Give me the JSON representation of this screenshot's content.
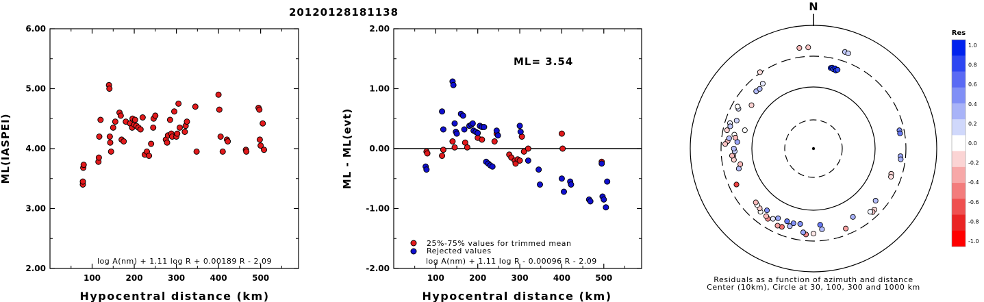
{
  "title": "20120128181138",
  "chart_data": [
    {
      "type": "scatter",
      "xlabel": "Hypocentral distance (km)",
      "ylabel": "ML(IASPEI)",
      "xlim": [
        0,
        590
      ],
      "ylim": [
        2,
        6
      ],
      "x_ticks": [
        100,
        200,
        300,
        400,
        500
      ],
      "y_ticks": [
        "2.00",
        "3.00",
        "4.00",
        "5.00",
        "6.00"
      ],
      "annotation": "log A(nm) + 1.11 log R + 0.00189 R - 2.09",
      "series": [
        {
          "color": "#e31a1c",
          "x": [
            78,
            78,
            79,
            80,
            115,
            116,
            117,
            120,
            140,
            141,
            142,
            143,
            145,
            150,
            155,
            165,
            168,
            170,
            175,
            180,
            190,
            195,
            196,
            200,
            202,
            205,
            210,
            215,
            220,
            225,
            230,
            235,
            240,
            245,
            246,
            250,
            275,
            278,
            280,
            285,
            288,
            290,
            295,
            300,
            302,
            305,
            308,
            320,
            322,
            325,
            345,
            348,
            400,
            402,
            405,
            410,
            420,
            422,
            465,
            466,
            495,
            497,
            498,
            500,
            505,
            508
          ],
          "y": [
            3.4,
            3.45,
            3.68,
            3.73,
            3.78,
            3.85,
            4.2,
            4.48,
            5.06,
            5.0,
            4.2,
            4.1,
            3.95,
            4.35,
            4.45,
            4.6,
            4.55,
            4.15,
            4.12,
            4.45,
            4.42,
            4.35,
            4.5,
            4.4,
            4.48,
            4.38,
            4.35,
            4.32,
            4.52,
            3.9,
            3.95,
            3.88,
            4.08,
            4.35,
            4.5,
            4.55,
            4.15,
            4.1,
            4.22,
            4.48,
            4.25,
            4.2,
            4.62,
            4.2,
            4.25,
            4.75,
            4.35,
            4.28,
            4.38,
            4.45,
            4.7,
            3.95,
            4.9,
            4.65,
            4.2,
            3.95,
            4.15,
            4.12,
            3.98,
            3.95,
            4.68,
            4.65,
            4.15,
            4.05,
            4.42,
            3.98
          ]
        }
      ]
    },
    {
      "type": "scatter",
      "xlabel": "Hypocentral distance (km)",
      "ylabel": "ML - ML(evt)",
      "xlim": [
        0,
        590
      ],
      "ylim": [
        -2,
        2
      ],
      "x_ticks": [
        100,
        200,
        300,
        400,
        500
      ],
      "y_ticks": [
        "-2.00",
        "-1.00",
        "0.00",
        "1.00",
        "2.00"
      ],
      "ml_label": "ML= 3.54",
      "annotation": "log A(nm) + 1.11 log R - 0.00096 R - 2.09",
      "legend": [
        "25%-75% values for trimmed mean",
        "Rejected values"
      ],
      "series": [
        {
          "color": "#e31a1c",
          "x": [
            78,
            80,
            115,
            118,
            140,
            145,
            170,
            175,
            200,
            210,
            240,
            245,
            275,
            280,
            288,
            290,
            295,
            300,
            305,
            310,
            320,
            400,
            402,
            495
          ],
          "y": [
            -0.05,
            -0.08,
            -0.12,
            -0.02,
            0.12,
            0.02,
            0.1,
            0.02,
            0.18,
            0.15,
            0.12,
            0.25,
            -0.1,
            -0.15,
            -0.2,
            -0.25,
            -0.18,
            -0.2,
            0.2,
            -0.05,
            0.0,
            0.25,
            0.0,
            -0.22
          ]
        },
        {
          "color": "#1010d0",
          "x": [
            76,
            78,
            115,
            118,
            140,
            142,
            145,
            148,
            150,
            160,
            165,
            168,
            180,
            185,
            188,
            190,
            195,
            200,
            205,
            210,
            215,
            220,
            225,
            230,
            235,
            245,
            248,
            300,
            302,
            320,
            345,
            348,
            400,
            405,
            420,
            422,
            465,
            468,
            495,
            497,
            500,
            505,
            508
          ],
          "y": [
            -0.3,
            -0.35,
            0.62,
            0.32,
            1.12,
            1.06,
            0.42,
            0.28,
            0.25,
            0.58,
            0.55,
            0.32,
            0.38,
            0.4,
            0.42,
            0.3,
            0.28,
            0.26,
            0.38,
            0.36,
            0.36,
            -0.22,
            -0.25,
            -0.28,
            -0.3,
            0.3,
            0.22,
            0.38,
            0.28,
            -0.2,
            -0.35,
            -0.6,
            -0.5,
            -0.72,
            -0.55,
            -0.6,
            -0.85,
            -0.88,
            -0.25,
            -0.8,
            -0.85,
            -0.98,
            -0.55
          ]
        }
      ]
    },
    {
      "type": "scatter",
      "subtype": "polar",
      "north_label": "N",
      "caption_line1": "Residuals as a function of azimuth and distance",
      "caption_line2": "Center (10km), Circle at 30, 100, 300 and 1000 km",
      "colorbar_title": "Res",
      "colorbar_ticks": [
        "1.0",
        "0.8",
        "0.6",
        "0.4",
        "0.2",
        "0.0",
        "-0.2",
        "-0.4",
        "-0.6",
        "-0.8",
        "-1.0"
      ],
      "colorbar_colors": [
        "#0022ee",
        "#2d46f2",
        "#5a6af4",
        "#808ff6",
        "#a8b3f8",
        "#d0d8fb",
        "#ffffff",
        "#fbd4d4",
        "#f7a8a8",
        "#f37c7c",
        "#ef5050",
        "#ea2424",
        "#ff0000"
      ],
      "points": [
        {
          "az": -8,
          "dist": 430,
          "res": -0.3
        },
        {
          "az": -3,
          "dist": 425,
          "res": -0.25
        },
        {
          "az": 18,
          "dist": 430,
          "res": 0.25
        },
        {
          "az": 20,
          "dist": 425,
          "res": 0.2
        },
        {
          "az": -35,
          "dist": 310,
          "res": -0.15
        },
        {
          "az": 12,
          "dist": 210,
          "res": 1.0
        },
        {
          "az": 13,
          "dist": 215,
          "res": 0.9
        },
        {
          "az": 14,
          "dist": 205,
          "res": 0.85
        },
        {
          "az": 15,
          "dist": 215,
          "res": 1.0
        },
        {
          "az": 16,
          "dist": 200,
          "res": 0.95
        },
        {
          "az": 17,
          "dist": 210,
          "res": 0.8
        },
        {
          "az": -62,
          "dist": 230,
          "res": 0.15
        },
        {
          "az": -61,
          "dist": 245,
          "res": 0.0
        },
        {
          "az": -73,
          "dist": 250,
          "res": 0.1
        },
        {
          "az": -75,
          "dist": 240,
          "res": 0.25
        },
        {
          "az": -78,
          "dist": 260,
          "res": -0.2
        },
        {
          "az": -85,
          "dist": 240,
          "res": -0.3
        },
        {
          "az": -87,
          "dist": 260,
          "res": -0.25
        },
        {
          "az": -83,
          "dist": 230,
          "res": 0.3
        },
        {
          "az": -80,
          "dist": 195,
          "res": 0.0
        },
        {
          "az": -95,
          "dist": 195,
          "res": -0.2
        },
        {
          "az": 78,
          "dist": 255,
          "res": 0.5
        },
        {
          "az": 80,
          "dist": 255,
          "res": 0.6
        },
        {
          "az": 95,
          "dist": 250,
          "res": 0.4
        },
        {
          "az": 97,
          "dist": 255,
          "res": 0.35
        },
        {
          "az": 108,
          "dist": 205,
          "res": -0.2
        },
        {
          "az": 110,
          "dist": 210,
          "res": -0.15
        },
        {
          "az": 130,
          "dist": 200,
          "res": 0.3
        },
        {
          "az": 150,
          "dist": 185,
          "res": 0.35
        },
        {
          "az": 135,
          "dist": 240,
          "res": -0.15
        },
        {
          "az": 137,
          "dist": 245,
          "res": -0.25
        },
        {
          "az": 138,
          "dist": 230,
          "res": 0.05
        },
        {
          "az": 158,
          "dist": 240,
          "res": -0.4
        },
        {
          "az": 174,
          "dist": 200,
          "res": 0.3
        },
        {
          "az": 175,
          "dist": 170,
          "res": 0.6
        },
        {
          "az": 180,
          "dist": 230,
          "res": -0.1
        },
        {
          "az": 185,
          "dist": 240,
          "res": -0.5
        },
        {
          "az": 187,
          "dist": 225,
          "res": 0.4
        },
        {
          "az": 190,
          "dist": 170,
          "res": 0.5
        },
        {
          "az": 195,
          "dist": 175,
          "res": 0.5
        },
        {
          "az": 197,
          "dist": 200,
          "res": 0.3
        },
        {
          "az": 200,
          "dist": 175,
          "res": 0.6
        },
        {
          "az": 202,
          "dist": 225,
          "res": -0.6
        },
        {
          "az": 205,
          "dist": 230,
          "res": -0.4
        },
        {
          "az": 207,
          "dist": 180,
          "res": 0.4
        },
        {
          "az": 210,
          "dist": 200,
          "res": 0.1
        },
        {
          "az": 213,
          "dist": 220,
          "res": -0.5
        },
        {
          "az": 215,
          "dist": 210,
          "res": -0.3
        },
        {
          "az": 217,
          "dist": 175,
          "res": 0.5
        },
        {
          "az": 220,
          "dist": 210,
          "res": 0.0
        },
        {
          "az": 222,
          "dist": 195,
          "res": -0.2
        },
        {
          "az": 225,
          "dist": 190,
          "res": 0.0
        },
        {
          "az": 227,
          "dist": 185,
          "res": -0.3
        },
        {
          "az": 245,
          "dist": 230,
          "res": -0.8
        },
        {
          "az": 255,
          "dist": 175,
          "res": 0.3
        },
        {
          "az": 258,
          "dist": 160,
          "res": -0.3
        },
        {
          "az": 262,
          "dist": 195,
          "res": -0.2
        },
        {
          "az": 265,
          "dist": 205,
          "res": -0.3
        },
        {
          "az": 268,
          "dist": 185,
          "res": 0.2
        },
        {
          "az": 270,
          "dist": 190,
          "res": 0.3
        },
        {
          "az": 275,
          "dist": 170,
          "res": 0.4
        },
        {
          "az": 278,
          "dist": 185,
          "res": -0.3
        },
        {
          "az": 285,
          "dist": 140,
          "res": 0.0
        },
        {
          "az": 290,
          "dist": 205,
          "res": 0.2
        },
        {
          "az": 305,
          "dist": 165,
          "res": -0.2
        },
        {
          "az": 315,
          "dist": 200,
          "res": 0.3
        },
        {
          "az": 318,
          "dist": 195,
          "res": 0.3
        },
        {
          "az": 322,
          "dist": 210,
          "res": 0.1
        }
      ]
    }
  ]
}
